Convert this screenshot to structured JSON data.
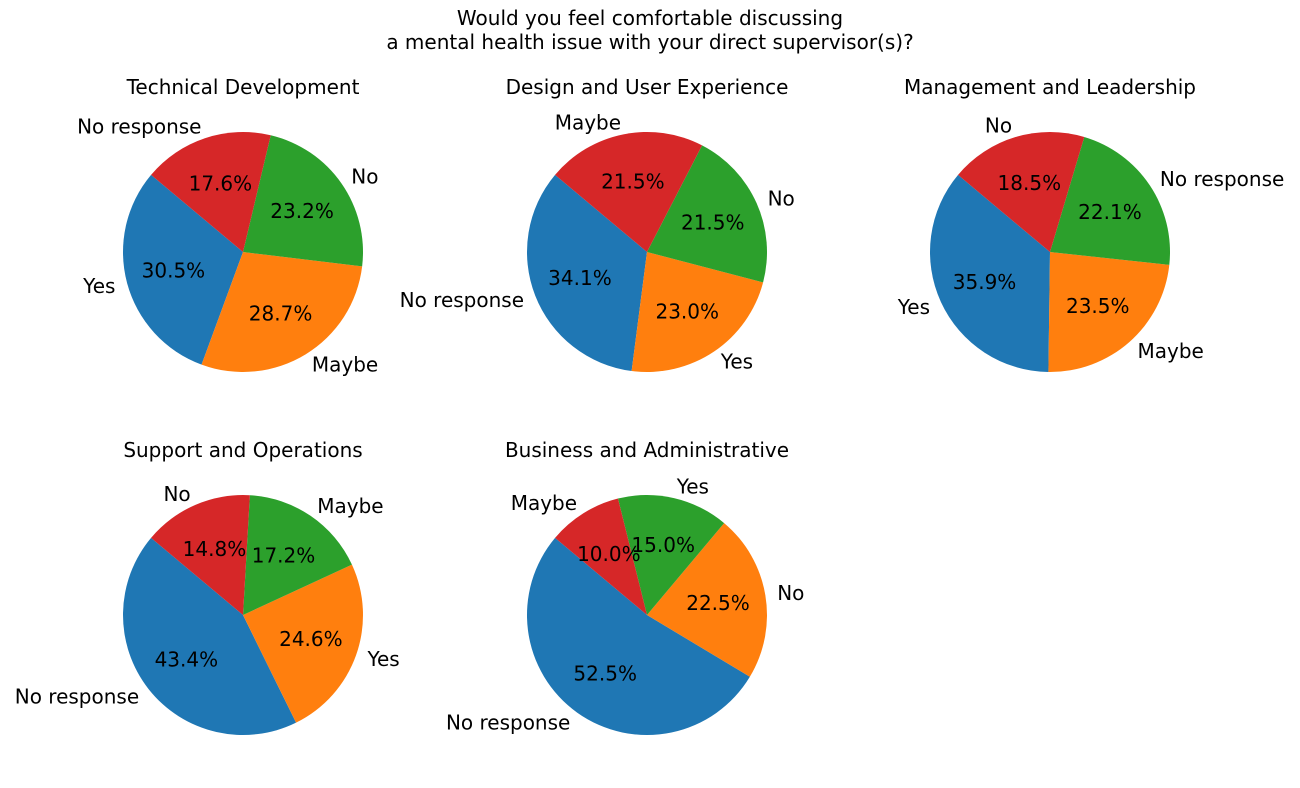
{
  "figure": {
    "title_lines": [
      "Would you feel comfortable discussing",
      "a mental health issue with your direct supervisor(s)?"
    ]
  },
  "chart_data": [
    {
      "type": "pie",
      "title": "Technical Development",
      "start_angle": 140,
      "slices": [
        {
          "label": "Yes",
          "value": 30.5,
          "pct_label": "30.5%",
          "color": "#1f77b4"
        },
        {
          "label": "Maybe",
          "value": 28.7,
          "pct_label": "28.7%",
          "color": "#ff7f0e"
        },
        {
          "label": "No",
          "value": 23.2,
          "pct_label": "23.2%",
          "color": "#2ca02c"
        },
        {
          "label": "No response",
          "value": 17.6,
          "pct_label": "17.6%",
          "color": "#d62728"
        }
      ]
    },
    {
      "type": "pie",
      "title": "Design and User Experience",
      "start_angle": 140,
      "slices": [
        {
          "label": "No response",
          "value": 34.1,
          "pct_label": "34.1%",
          "color": "#1f77b4"
        },
        {
          "label": "Yes",
          "value": 23.0,
          "pct_label": "23.0%",
          "color": "#ff7f0e"
        },
        {
          "label": "No",
          "value": 21.5,
          "pct_label": "21.5%",
          "color": "#2ca02c"
        },
        {
          "label": "Maybe",
          "value": 21.5,
          "pct_label": "21.5%",
          "color": "#d62728"
        }
      ]
    },
    {
      "type": "pie",
      "title": "Management and Leadership",
      "start_angle": 140,
      "slices": [
        {
          "label": "Yes",
          "value": 35.9,
          "pct_label": "35.9%",
          "color": "#1f77b4"
        },
        {
          "label": "Maybe",
          "value": 23.5,
          "pct_label": "23.5%",
          "color": "#ff7f0e"
        },
        {
          "label": "No response",
          "value": 22.1,
          "pct_label": "22.1%",
          "color": "#2ca02c"
        },
        {
          "label": "No",
          "value": 18.5,
          "pct_label": "18.5%",
          "color": "#d62728"
        }
      ]
    },
    {
      "type": "pie",
      "title": "Support and Operations",
      "start_angle": 140,
      "slices": [
        {
          "label": "No response",
          "value": 43.4,
          "pct_label": "43.4%",
          "color": "#1f77b4"
        },
        {
          "label": "Yes",
          "value": 24.6,
          "pct_label": "24.6%",
          "color": "#ff7f0e"
        },
        {
          "label": "Maybe",
          "value": 17.2,
          "pct_label": "17.2%",
          "color": "#2ca02c"
        },
        {
          "label": "No",
          "value": 14.8,
          "pct_label": "14.8%",
          "color": "#d62728"
        }
      ]
    },
    {
      "type": "pie",
      "title": "Business and Administrative",
      "start_angle": 140,
      "slices": [
        {
          "label": "No response",
          "value": 52.5,
          "pct_label": "52.5%",
          "color": "#1f77b4"
        },
        {
          "label": "No",
          "value": 22.5,
          "pct_label": "22.5%",
          "color": "#ff7f0e"
        },
        {
          "label": "Yes",
          "value": 15.0,
          "pct_label": "15.0%",
          "color": "#2ca02c"
        },
        {
          "label": "Maybe",
          "value": 10.0,
          "pct_label": "10.0%",
          "color": "#d62728"
        }
      ]
    }
  ]
}
